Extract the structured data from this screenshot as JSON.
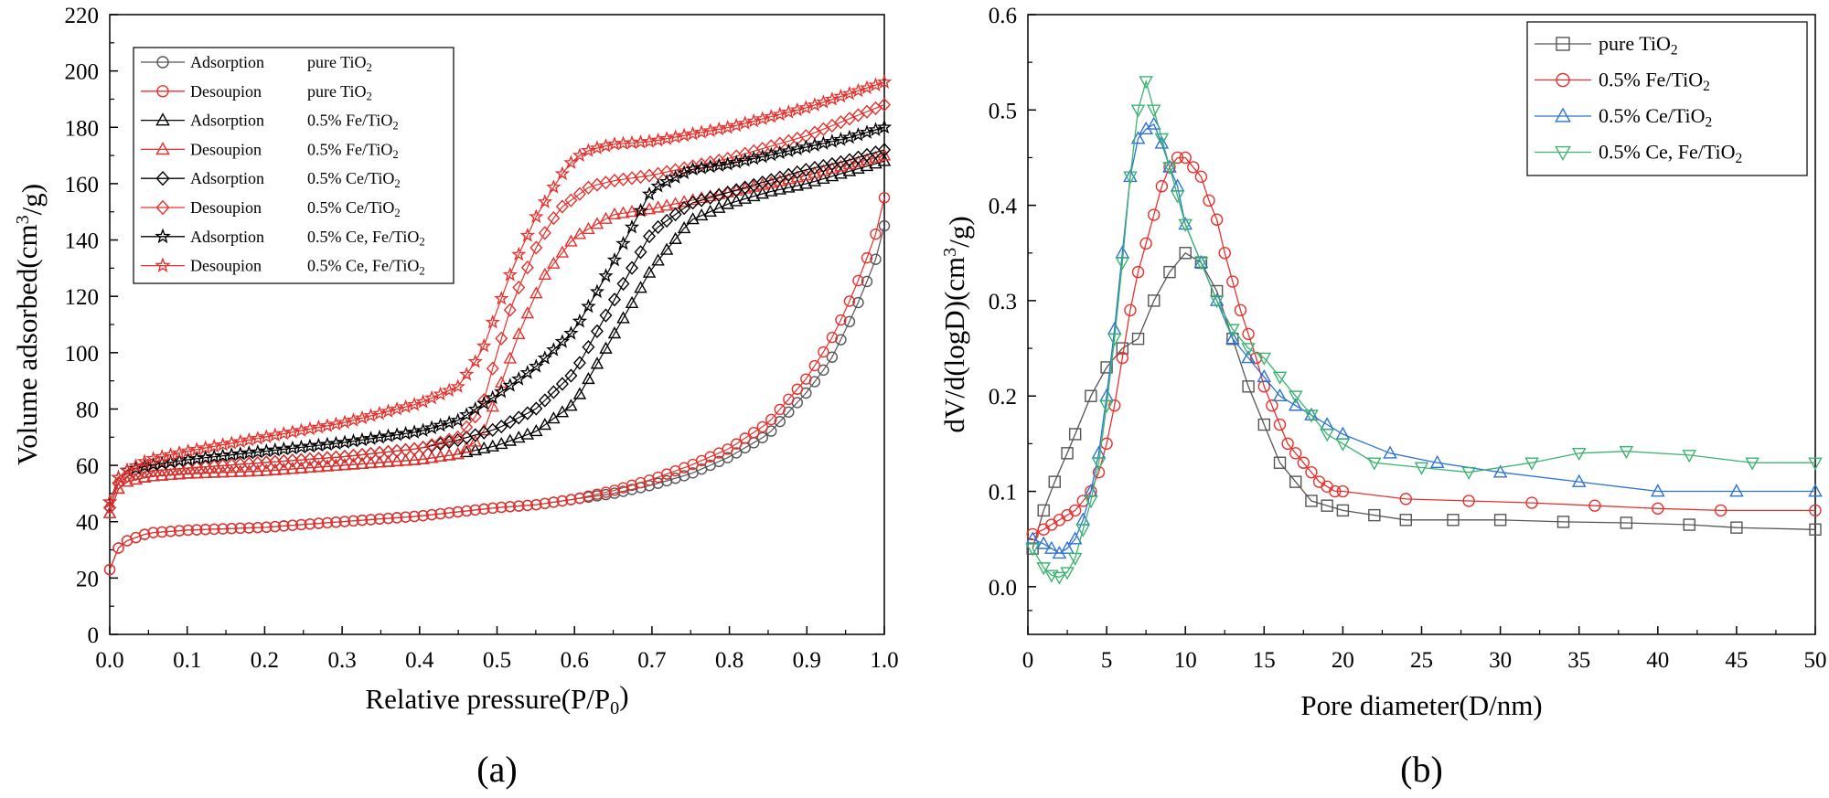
{
  "chart_data": [
    {
      "type": "scatter",
      "panel_label": "(a)",
      "xlabel": "Relative pressure(P/P0)",
      "xlabel_parts": [
        "Relative pressure(P/P",
        "0",
        ")"
      ],
      "ylabel": "Volume adsorbed(cm3/g)",
      "ylabel_parts": [
        "Volume adsorbed(cm",
        "3",
        "/g)"
      ],
      "xlim": [
        0,
        1.0
      ],
      "ylim": [
        0,
        220
      ],
      "xticks": [
        "0.0",
        "0.1",
        "0.2",
        "0.3",
        "0.4",
        "0.5",
        "0.6",
        "0.7",
        "0.8",
        "0.9",
        "1.0"
      ],
      "yticks": [
        "0",
        "20",
        "40",
        "60",
        "80",
        "100",
        "120",
        "140",
        "160",
        "180",
        "200",
        "220"
      ],
      "legend_position": "top-left",
      "series": [
        {
          "name": "Adsorption pure TiO2",
          "legend_mode": "Adsorption",
          "legend_sample": "pure TiO",
          "legend_sub": "2",
          "color": "#555555",
          "marker": "circle",
          "x": [
            0.0,
            0.005,
            0.02,
            0.05,
            0.1,
            0.2,
            0.3,
            0.4,
            0.5,
            0.55,
            0.6,
            0.65,
            0.7,
            0.75,
            0.8,
            0.85,
            0.9,
            0.93,
            0.95,
            0.97,
            0.99,
            1.0
          ],
          "y": [
            23,
            29,
            33,
            36,
            37,
            38,
            40,
            42,
            45,
            46,
            48,
            50,
            53,
            57,
            63,
            71,
            86,
            97,
            108,
            120,
            134,
            145
          ]
        },
        {
          "name": "Desoupion pure TiO2",
          "legend_mode": "Desoupion",
          "legend_sample": "pure TiO",
          "legend_sub": "2",
          "color": "#e8312d",
          "marker": "circle",
          "x": [
            0.0,
            0.005,
            0.02,
            0.05,
            0.1,
            0.2,
            0.3,
            0.4,
            0.5,
            0.55,
            0.6,
            0.65,
            0.7,
            0.75,
            0.8,
            0.85,
            0.9,
            0.93,
            0.95,
            0.97,
            0.99,
            1.0
          ],
          "y": [
            23,
            29,
            33,
            36,
            37,
            38,
            40,
            42,
            45,
            46,
            48,
            51,
            55,
            60,
            66,
            75,
            91,
            104,
            115,
            128,
            143,
            155
          ]
        },
        {
          "name": "Adsorption 0.5% Fe/TiO2",
          "legend_mode": "Adsorption",
          "legend_sample": "0.5% Fe/TiO",
          "legend_sub": "2",
          "color": "#000000",
          "marker": "triangle-up",
          "x": [
            0.0,
            0.005,
            0.02,
            0.05,
            0.1,
            0.2,
            0.3,
            0.4,
            0.45,
            0.5,
            0.55,
            0.6,
            0.65,
            0.7,
            0.75,
            0.8,
            0.85,
            0.9,
            0.95,
            1.0
          ],
          "y": [
            43,
            50,
            54,
            56,
            57,
            58,
            60,
            62,
            64,
            67,
            72,
            82,
            106,
            130,
            147,
            153,
            157,
            160,
            164,
            168
          ]
        },
        {
          "name": "Desoupion 0.5% Fe/TiO2",
          "legend_mode": "Desoupion",
          "legend_sample": "0.5% Fe/TiO",
          "legend_sub": "2",
          "color": "#e8312d",
          "marker": "triangle-up",
          "x": [
            0.0,
            0.005,
            0.02,
            0.05,
            0.1,
            0.2,
            0.3,
            0.4,
            0.45,
            0.48,
            0.5,
            0.53,
            0.56,
            0.6,
            0.65,
            0.7,
            0.8,
            0.9,
            1.0
          ],
          "y": [
            43,
            50,
            54,
            56,
            57,
            58,
            60,
            62,
            64,
            70,
            85,
            108,
            127,
            141,
            149,
            151,
            157,
            163,
            170
          ]
        },
        {
          "name": "Adsorption 0.5% Ce/TiO2",
          "legend_mode": "Adsorption",
          "legend_sample": "0.5% Ce/TiO",
          "legend_sub": "2",
          "color": "#000000",
          "marker": "diamond",
          "x": [
            0.0,
            0.005,
            0.02,
            0.05,
            0.1,
            0.2,
            0.3,
            0.4,
            0.45,
            0.5,
            0.55,
            0.6,
            0.65,
            0.7,
            0.75,
            0.8,
            0.85,
            0.9,
            0.95,
            1.0
          ],
          "y": [
            45,
            52,
            56,
            58,
            59,
            61,
            63,
            66,
            69,
            73,
            80,
            93,
            118,
            143,
            153,
            157,
            161,
            165,
            168,
            172
          ]
        },
        {
          "name": "Desoupion 0.5% Ce/TiO2",
          "legend_mode": "Desoupion",
          "legend_sample": "0.5% Ce/TiO",
          "legend_sub": "2",
          "color": "#e8312d",
          "marker": "diamond",
          "x": [
            0.0,
            0.005,
            0.02,
            0.05,
            0.1,
            0.2,
            0.3,
            0.4,
            0.45,
            0.48,
            0.5,
            0.52,
            0.55,
            0.58,
            0.62,
            0.65,
            0.7,
            0.8,
            0.9,
            1.0
          ],
          "y": [
            45,
            52,
            56,
            58,
            59,
            61,
            63,
            66,
            70,
            80,
            100,
            118,
            137,
            151,
            159,
            161,
            163,
            169,
            177,
            188
          ]
        },
        {
          "name": "Adsorption 0.5% Ce, Fe/TiO2",
          "legend_mode": "Adsorption",
          "legend_sample": "0.5% Ce, Fe/TiO",
          "legend_sub": "2",
          "color": "#000000",
          "marker": "star",
          "x": [
            0.0,
            0.005,
            0.02,
            0.05,
            0.1,
            0.2,
            0.3,
            0.4,
            0.45,
            0.5,
            0.55,
            0.6,
            0.63,
            0.65,
            0.7,
            0.75,
            0.8,
            0.85,
            0.9,
            0.95,
            1.0
          ],
          "y": [
            47,
            54,
            58,
            60,
            62,
            65,
            68,
            72,
            76,
            85,
            95,
            108,
            122,
            132,
            158,
            165,
            167,
            170,
            173,
            176,
            180
          ]
        },
        {
          "name": "Desoupion 0.5% Ce, Fe/TiO2",
          "legend_mode": "Desoupion",
          "legend_sample": "0.5% Ce, Fe/TiO",
          "legend_sub": "2",
          "color": "#e8312d",
          "marker": "star",
          "x": [
            0.0,
            0.005,
            0.02,
            0.05,
            0.1,
            0.2,
            0.3,
            0.4,
            0.45,
            0.48,
            0.5,
            0.52,
            0.55,
            0.58,
            0.6,
            0.62,
            0.65,
            0.7,
            0.8,
            0.9,
            1.0
          ],
          "y": [
            47,
            54,
            58,
            62,
            65,
            70,
            75,
            82,
            88,
            100,
            115,
            130,
            148,
            162,
            169,
            172,
            174,
            175,
            180,
            187,
            196
          ]
        }
      ]
    },
    {
      "type": "line",
      "panel_label": "(b)",
      "xlabel": "Pore diameter(D/nm)",
      "ylabel": "dV/d(logD)(cm3/g)",
      "ylabel_parts": [
        "dV/d(logD)(cm",
        "3",
        "/g)"
      ],
      "xlim": [
        0,
        50
      ],
      "ylim": [
        -0.05,
        0.6
      ],
      "xticks": [
        "0",
        "5",
        "10",
        "15",
        "20",
        "25",
        "30",
        "35",
        "40",
        "45",
        "50"
      ],
      "yticks": [
        "0.0",
        "0.1",
        "0.2",
        "0.3",
        "0.4",
        "0.5",
        "0.6"
      ],
      "legend_position": "top-right",
      "series": [
        {
          "name": "pure TiO2",
          "legend_label": "pure TiO",
          "legend_sub": "2",
          "color": "#555555",
          "marker": "square",
          "x": [
            0.3,
            1,
            1.7,
            2.5,
            3,
            4,
            5,
            6,
            7,
            8,
            9,
            10,
            11,
            12,
            13,
            14,
            15,
            16,
            17,
            18,
            19,
            20,
            22,
            24,
            27,
            30,
            34,
            38,
            42,
            45,
            50
          ],
          "y": [
            0.04,
            0.08,
            0.11,
            0.14,
            0.16,
            0.2,
            0.23,
            0.25,
            0.26,
            0.3,
            0.33,
            0.35,
            0.34,
            0.31,
            0.26,
            0.21,
            0.17,
            0.13,
            0.11,
            0.09,
            0.085,
            0.08,
            0.075,
            0.07,
            0.07,
            0.07,
            0.068,
            0.067,
            0.065,
            0.062,
            0.06
          ]
        },
        {
          "name": "0.5% Fe/TiO2",
          "legend_label": "0.5% Fe/TiO",
          "legend_sub": "2",
          "color": "#e8312d",
          "marker": "circle",
          "x": [
            0.3,
            1,
            1.5,
            2,
            2.5,
            3,
            3.5,
            4,
            4.5,
            5,
            5.5,
            6,
            6.5,
            7,
            7.5,
            8,
            8.5,
            9,
            9.5,
            10,
            10.5,
            11,
            11.5,
            12,
            12.5,
            13,
            13.5,
            14,
            14.5,
            15,
            15.5,
            16,
            16.5,
            17,
            17.5,
            18,
            18.5,
            19,
            19.5,
            20,
            24,
            28,
            32,
            36,
            40,
            44,
            50
          ],
          "y": [
            0.055,
            0.06,
            0.065,
            0.07,
            0.075,
            0.08,
            0.09,
            0.1,
            0.12,
            0.15,
            0.19,
            0.24,
            0.29,
            0.33,
            0.36,
            0.39,
            0.42,
            0.44,
            0.45,
            0.45,
            0.44,
            0.43,
            0.405,
            0.385,
            0.35,
            0.32,
            0.29,
            0.265,
            0.24,
            0.21,
            0.19,
            0.17,
            0.15,
            0.14,
            0.13,
            0.12,
            0.11,
            0.105,
            0.1,
            0.1,
            0.092,
            0.09,
            0.088,
            0.085,
            0.082,
            0.08,
            0.08
          ]
        },
        {
          "name": "0.5% Ce/TiO2",
          "legend_label": "0.5% Ce/TiO",
          "legend_sub": "2",
          "color": "#2c73d2",
          "marker": "triangle-up",
          "x": [
            0.3,
            1,
            1.5,
            2,
            2.5,
            3,
            3.5,
            4,
            4.5,
            5,
            5.5,
            6,
            6.5,
            7,
            7.5,
            8,
            8.5,
            9,
            9.5,
            10,
            11,
            12,
            13,
            14,
            15,
            16,
            17,
            18,
            19,
            20,
            23,
            26,
            30,
            35,
            40,
            45,
            50
          ],
          "y": [
            0.05,
            0.045,
            0.04,
            0.035,
            0.04,
            0.05,
            0.07,
            0.1,
            0.14,
            0.2,
            0.27,
            0.35,
            0.43,
            0.47,
            0.48,
            0.485,
            0.465,
            0.44,
            0.42,
            0.38,
            0.34,
            0.3,
            0.26,
            0.24,
            0.22,
            0.2,
            0.19,
            0.18,
            0.17,
            0.16,
            0.14,
            0.13,
            0.12,
            0.11,
            0.1,
            0.1,
            0.1
          ]
        },
        {
          "name": "0.5% Ce, Fe/TiO2",
          "legend_label": "0.5% Ce, Fe/TiO",
          "legend_sub": "2",
          "color": "#3cb371",
          "marker": "triangle-down",
          "x": [
            0.3,
            1,
            1.5,
            2,
            2.5,
            3,
            3.5,
            4,
            4.5,
            5,
            5.5,
            6,
            6.5,
            7,
            7.5,
            8,
            8.5,
            9,
            9.5,
            10,
            11,
            12,
            13,
            14,
            15,
            16,
            17,
            18,
            19,
            20,
            22,
            25,
            28,
            32,
            35,
            38,
            42,
            46,
            50
          ],
          "y": [
            0.04,
            0.02,
            0.012,
            0.01,
            0.015,
            0.03,
            0.06,
            0.09,
            0.13,
            0.19,
            0.26,
            0.34,
            0.43,
            0.5,
            0.53,
            0.5,
            0.47,
            0.44,
            0.41,
            0.38,
            0.34,
            0.3,
            0.27,
            0.25,
            0.24,
            0.22,
            0.2,
            0.18,
            0.16,
            0.15,
            0.13,
            0.125,
            0.12,
            0.13,
            0.14,
            0.142,
            0.138,
            0.13,
            0.13
          ]
        }
      ]
    }
  ]
}
